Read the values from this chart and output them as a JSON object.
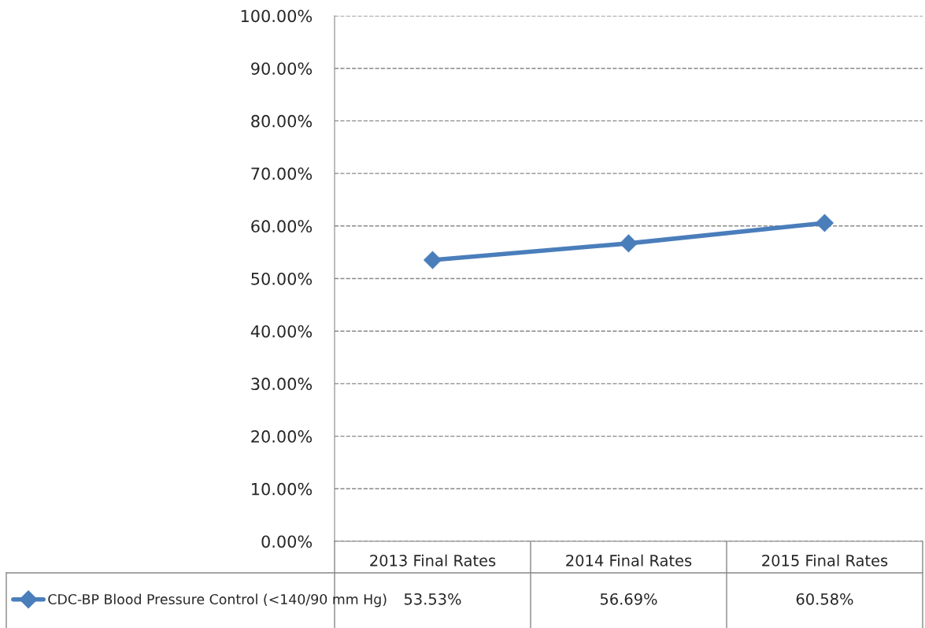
{
  "chart_data": {
    "type": "line",
    "categories": [
      "2013 Final Rates",
      "2014 Final Rates",
      "2015 Final Rates"
    ],
    "series": [
      {
        "name": "CDC-BP Blood Pressure Control (<140/90 mm Hg)",
        "color": "#4a7ebb",
        "values": [
          53.53,
          56.69,
          60.58
        ],
        "value_labels": [
          "53.53%",
          "56.69%",
          "60.58%"
        ]
      }
    ],
    "ylim": [
      0,
      100
    ],
    "yticks": [
      {
        "value": 0,
        "label": "0.00%"
      },
      {
        "value": 10,
        "label": "10.00%"
      },
      {
        "value": 20,
        "label": "20.00%"
      },
      {
        "value": 30,
        "label": "30.00%"
      },
      {
        "value": 40,
        "label": "40.00%"
      },
      {
        "value": 50,
        "label": "50.00%"
      },
      {
        "value": 60,
        "label": "60.00%"
      },
      {
        "value": 70,
        "label": "70.00%"
      },
      {
        "value": 80,
        "label": "80.00%"
      },
      {
        "value": 90,
        "label": "90.00%"
      },
      {
        "value": 100,
        "label": "100.00%"
      }
    ],
    "grid": "y",
    "legend": "bottom left",
    "marker": "diamond",
    "line_style": "solid"
  }
}
